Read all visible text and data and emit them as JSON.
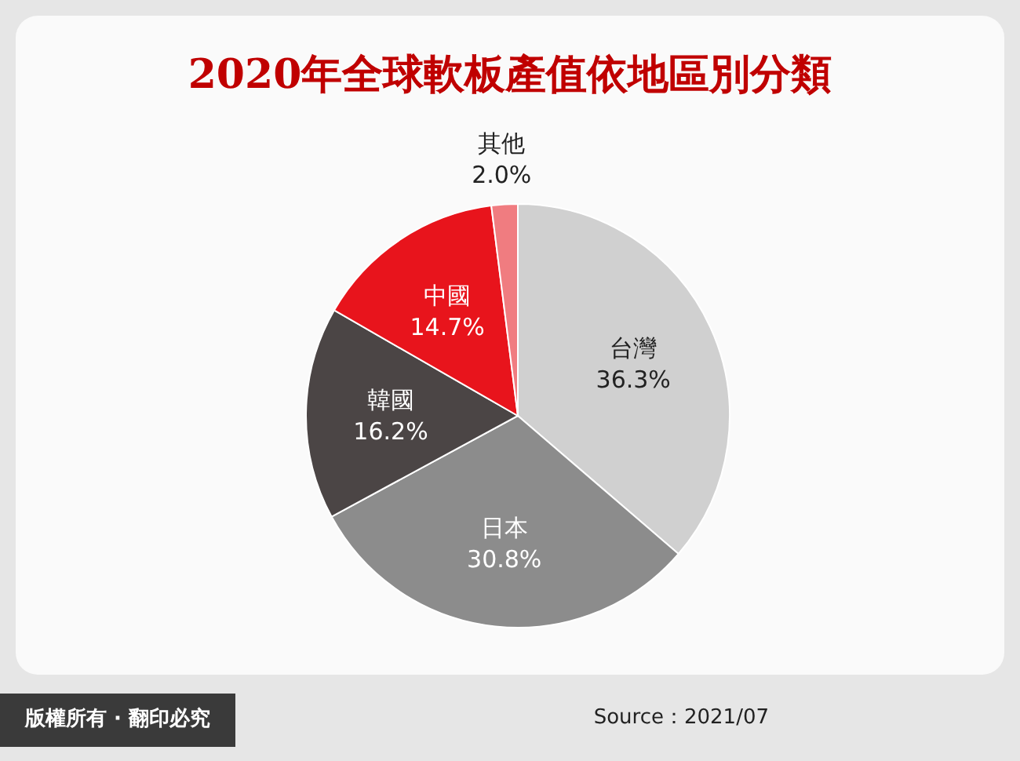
{
  "chart_data": {
    "type": "pie",
    "title": "2020年全球軟板產值依地區別分類",
    "categories": [
      "台灣",
      "日本",
      "韓國",
      "中國",
      "其他"
    ],
    "values": [
      36.3,
      30.8,
      16.2,
      14.7,
      2.0
    ],
    "value_labels": [
      "36.3%",
      "30.8%",
      "16.2%",
      "14.7%",
      "2.0%"
    ],
    "colors": [
      "#d0d0d0",
      "#8c8c8c",
      "#4b4545",
      "#e8141c",
      "#f07c80"
    ],
    "annotations": [
      "版權所有 · 翻印必究",
      "Source：2021/07"
    ]
  }
}
